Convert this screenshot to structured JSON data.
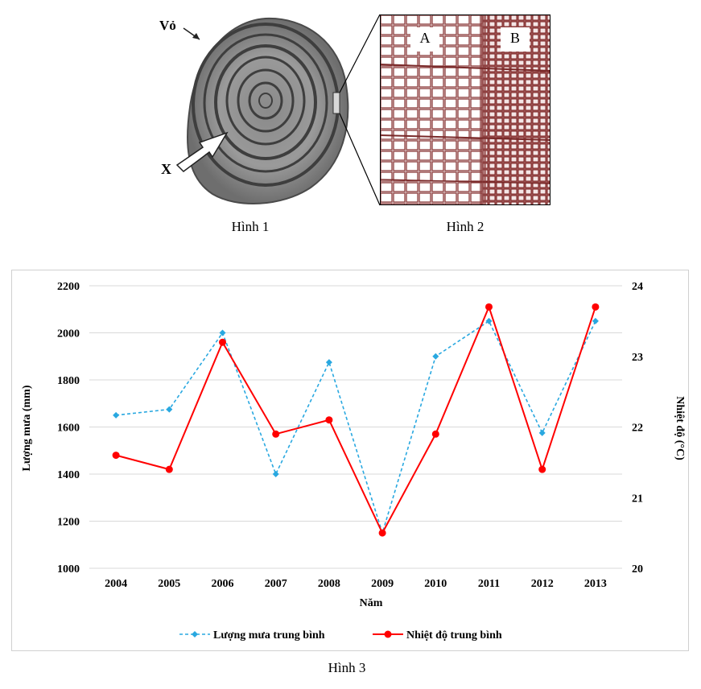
{
  "figure1": {
    "label_bark": "Vỏ",
    "label_x": "X",
    "caption": "Hình 1"
  },
  "figure2": {
    "label_a": "A",
    "label_b": "B",
    "caption": "Hình 2"
  },
  "figure3": {
    "caption": "Hình 3"
  },
  "colors": {
    "rain": "#29a8e0",
    "temp": "#ff0000"
  },
  "chart_data": {
    "type": "line",
    "categories": [
      "2004",
      "2005",
      "2006",
      "2007",
      "2008",
      "2009",
      "2010",
      "2011",
      "2012",
      "2013"
    ],
    "xlabel": "Năm",
    "ylabel_left": "Lượng mưa (mm)",
    "ylabel_right": "Nhiệt độ (°C)",
    "ylim_left": [
      1000,
      2200
    ],
    "yticks_left": [
      "1000",
      "1200",
      "1400",
      "1600",
      "1800",
      "2000",
      "2200"
    ],
    "ylim_right": [
      20,
      24
    ],
    "yticks_right": [
      "20",
      "21",
      "22",
      "23",
      "24"
    ],
    "grid": true,
    "legend_position": "bottom",
    "series": [
      {
        "name": "Lượng mưa trung bình",
        "axis": "left",
        "style": "dashed, diamond markers",
        "values": [
          1650,
          1675,
          2000,
          1400,
          1875,
          1150,
          1900,
          2050,
          1575,
          2050
        ]
      },
      {
        "name": "Nhiệt độ trung bình",
        "axis": "right",
        "style": "solid, circle markers",
        "values": [
          21.6,
          21.4,
          23.2,
          21.9,
          22.1,
          20.5,
          21.9,
          23.7,
          21.4,
          23.7
        ]
      }
    ]
  }
}
